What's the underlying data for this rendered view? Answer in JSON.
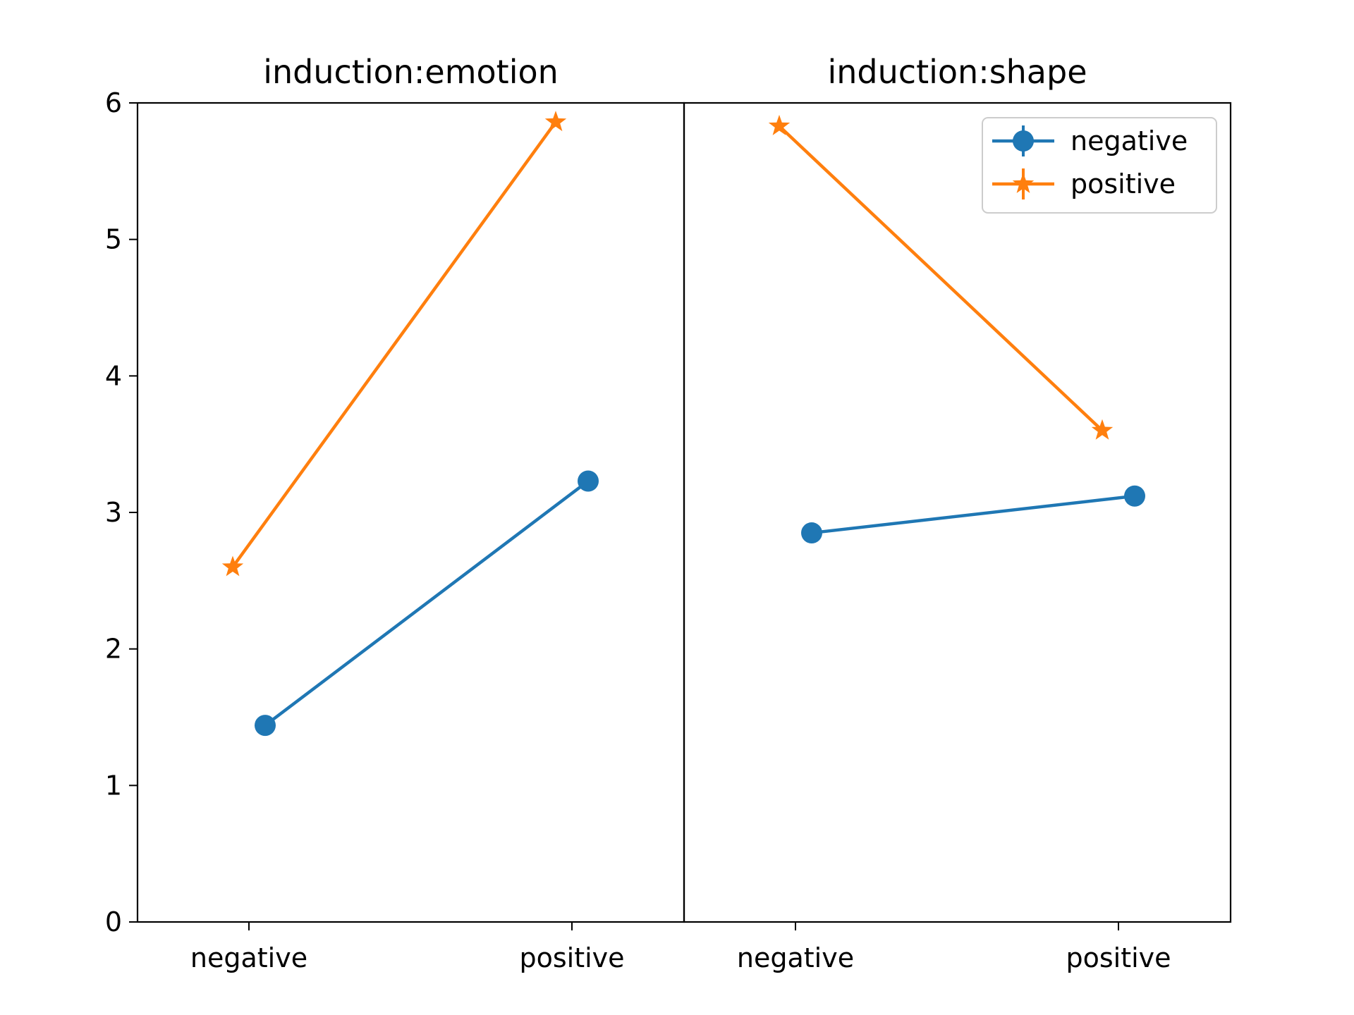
{
  "chart_data": [
    {
      "type": "line",
      "title": "induction:emotion",
      "categories": [
        "negative",
        "positive"
      ],
      "ylim": [
        0,
        6
      ],
      "yticks": [
        "0",
        "1",
        "2",
        "3",
        "4",
        "5",
        "6"
      ],
      "grid": false,
      "series": [
        {
          "name": "negative",
          "marker": "circle",
          "color": "#1f77b4",
          "values": [
            1.44,
            3.23
          ]
        },
        {
          "name": "positive",
          "marker": "star",
          "color": "#ff7f0e",
          "values": [
            2.6,
            5.86
          ]
        }
      ]
    },
    {
      "type": "line",
      "title": "induction:shape",
      "categories": [
        "negative",
        "positive"
      ],
      "ylim": [
        0,
        6
      ],
      "grid": false,
      "legend": "top-right",
      "series": [
        {
          "name": "negative",
          "marker": "circle",
          "color": "#1f77b4",
          "values": [
            2.85,
            3.12
          ]
        },
        {
          "name": "positive",
          "marker": "star",
          "color": "#ff7f0e",
          "values": [
            5.83,
            3.6
          ]
        }
      ]
    }
  ]
}
